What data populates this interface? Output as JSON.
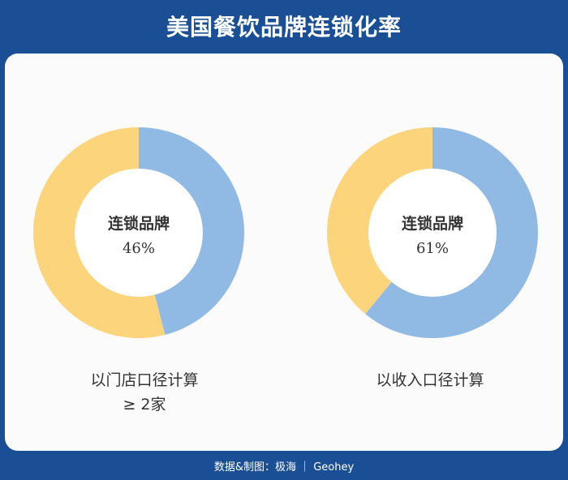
{
  "title": "美国餐饮品牌连锁化率",
  "chart_data": [
    {
      "type": "pie",
      "center_label": "连锁品牌",
      "center_value": "46%",
      "slices": [
        {
          "label": "连锁品牌",
          "value": 46,
          "color": "#90bae4"
        },
        {
          "label": "",
          "value": 54,
          "color": "#fbd47c"
        }
      ],
      "caption_line1": "以门店口径计算",
      "caption_line2": "≥ 2家"
    },
    {
      "type": "pie",
      "center_label": "连锁品牌",
      "center_value": "61%",
      "slices": [
        {
          "label": "连锁品牌",
          "value": 61,
          "color": "#90bae4"
        },
        {
          "label": "",
          "value": 39,
          "color": "#fbd47c"
        }
      ],
      "caption_line1": "以收入口径计算",
      "caption_line2": ""
    }
  ],
  "footer": "数据&制图：极海 ｜ Geohey"
}
